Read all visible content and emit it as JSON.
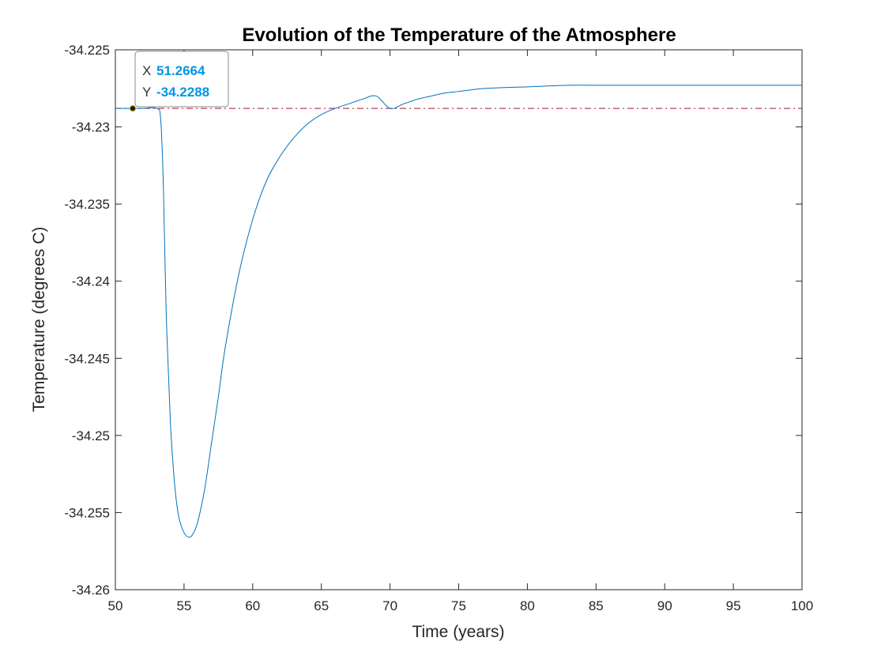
{
  "chart_data": {
    "type": "line",
    "title": "Evolution of the Temperature of the Atmosphere",
    "xlabel": "Time (years)",
    "ylabel": "Temperature (degrees C)",
    "xlim": [
      50,
      100
    ],
    "ylim": [
      -34.26,
      -34.225
    ],
    "xticks": [
      50,
      55,
      60,
      65,
      70,
      75,
      80,
      85,
      90,
      95,
      100
    ],
    "xtick_labels": [
      "50",
      "55",
      "60",
      "65",
      "70",
      "75",
      "80",
      "85",
      "90",
      "95",
      "100"
    ],
    "yticks": [
      -34.26,
      -34.255,
      -34.25,
      -34.245,
      -34.24,
      -34.235,
      -34.23,
      -34.225
    ],
    "ytick_labels": [
      "-34.26",
      "-34.255",
      "-34.25",
      "-34.245",
      "-34.24",
      "-34.235",
      "-34.23",
      "-34.225"
    ],
    "grid": false,
    "series": [
      {
        "color": "#0072BD",
        "x": [
          50,
          51,
          52,
          53,
          53.3,
          53.5,
          53.7,
          54,
          54.3,
          54.6,
          55,
          55.4,
          55.7,
          56,
          56.5,
          57,
          57.5,
          58,
          59,
          60,
          61,
          62,
          63,
          64,
          65,
          66,
          67,
          68,
          69,
          70,
          71,
          72,
          73,
          74,
          75,
          77,
          80,
          83,
          85,
          90,
          95,
          100
        ],
        "y": [
          -34.2288,
          -34.2288,
          -34.2288,
          -34.2288,
          -34.2295,
          -34.234,
          -34.242,
          -34.249,
          -34.253,
          -34.2552,
          -34.2563,
          -34.2566,
          -34.2563,
          -34.2556,
          -34.2535,
          -34.2505,
          -34.2475,
          -34.2443,
          -34.2395,
          -34.236,
          -34.2335,
          -34.2319,
          -34.2307,
          -34.2298,
          -34.2292,
          -34.2288,
          -34.2285,
          -34.2282,
          -34.228,
          -34.2288,
          -34.2285,
          -34.2282,
          -34.228,
          -34.2278,
          -34.2277,
          -34.2275,
          -34.2274,
          -34.2273,
          -34.2273,
          -34.2273,
          -34.2273,
          -34.2273
        ]
      }
    ],
    "reference_line": {
      "y": -34.2288,
      "color": "#A2142F",
      "style": "dash-dot"
    },
    "datatip": {
      "x": 51.2664,
      "y": -34.2288,
      "x_key": "X",
      "y_key": "Y",
      "x_text": "51.2664",
      "y_text": "-34.2288",
      "value_color": "#0095E8"
    }
  }
}
